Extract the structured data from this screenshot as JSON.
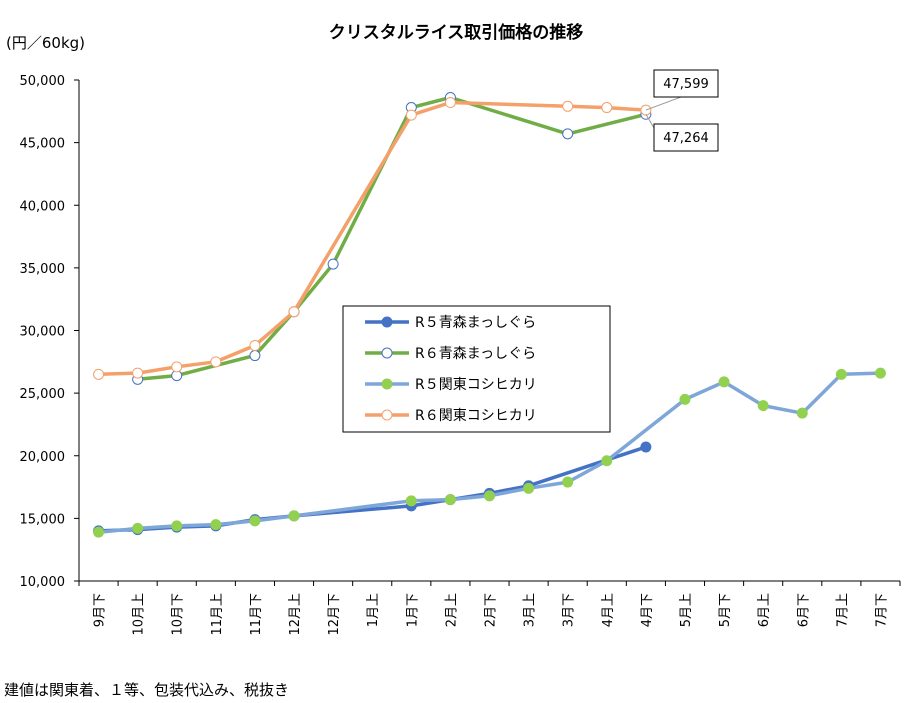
{
  "chart_data": {
    "type": "line",
    "title": "クリスタルライス取引価格の推移",
    "ylabel": "(円／60kg)",
    "ylim": [
      10000,
      50000
    ],
    "yticks": [
      "10,000",
      "15,000",
      "20,000",
      "25,000",
      "30,000",
      "35,000",
      "40,000",
      "45,000",
      "50,000"
    ],
    "categories": [
      "9月下",
      "10月上",
      "10月下",
      "11月上",
      "11月下",
      "12月上",
      "12月下",
      "1月上",
      "1月下",
      "2月上",
      "2月下",
      "3月上",
      "3月下",
      "4月上",
      "4月下",
      "5月上",
      "5月下",
      "6月上",
      "6月下",
      "7月上",
      "7月下"
    ],
    "grid": false,
    "legend_position": "center",
    "series": [
      {
        "name": "R５青森まっしぐら",
        "color": "#4472c4",
        "marker": "filled",
        "values": [
          14000,
          14100,
          14300,
          14400,
          14900,
          15200,
          null,
          null,
          16000,
          16500,
          17000,
          17600,
          null,
          null,
          20700,
          null,
          null,
          null,
          null,
          null,
          null
        ]
      },
      {
        "name": "R６青森まっしぐら",
        "color": "#70ad47",
        "marker": "open",
        "values": [
          null,
          26100,
          26400,
          null,
          28000,
          31500,
          35300,
          null,
          47800,
          48600,
          null,
          null,
          45700,
          null,
          47264,
          null,
          null,
          null,
          null,
          null,
          null
        ]
      },
      {
        "name": "R５関東コシヒカリ",
        "color": "#7ea6d8",
        "marker": "green-filled",
        "values": [
          13900,
          14200,
          14400,
          14500,
          14800,
          15200,
          null,
          null,
          16400,
          16500,
          16800,
          17400,
          17900,
          19600,
          null,
          24500,
          25900,
          24000,
          23400,
          26500,
          26600
        ]
      },
      {
        "name": "R６関東コシヒカリ",
        "color": "#f4a06a",
        "marker": "open",
        "values": [
          26500,
          26600,
          27100,
          27500,
          28800,
          31500,
          null,
          null,
          47200,
          48200,
          null,
          null,
          47900,
          47800,
          47599,
          null,
          null,
          null,
          null,
          null,
          null
        ]
      }
    ],
    "annotations": [
      {
        "text": "47,599",
        "category": "4月下",
        "value": 47599
      },
      {
        "text": "47,264",
        "category": "4月下",
        "value": 47264
      }
    ],
    "footnote": "建値は関東着、１等、包装代込み、税抜き"
  }
}
